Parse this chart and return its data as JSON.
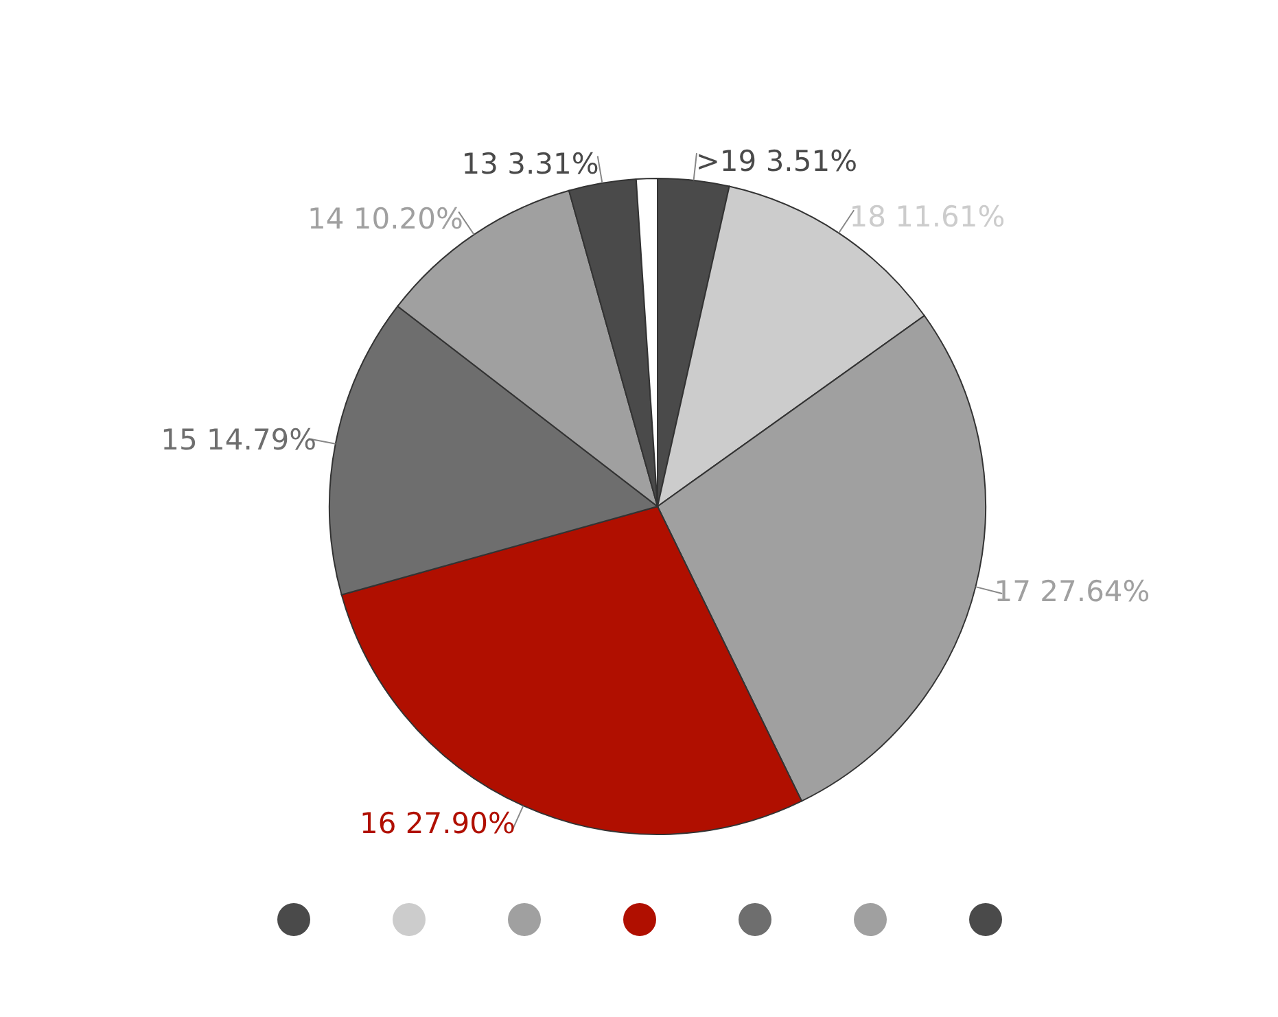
{
  "chart_data": {
    "type": "pie",
    "categories": [
      ">19",
      "18",
      "17",
      "16",
      "15",
      "14",
      "13",
      null
    ],
    "values": [
      3.51,
      11.61,
      27.64,
      27.9,
      14.79,
      10.2,
      3.31,
      1.04
    ],
    "value_labels": [
      "3.51%",
      "11.61%",
      "27.64%",
      "27.90%",
      "14.79%",
      "10.20%",
      "3.31%",
      null
    ],
    "colors": [
      "#4a4a4a",
      "#cccccc",
      "#a0a0a0",
      "#b00f00",
      "#6e6e6e",
      "#a0a0a0",
      "#4a4a4a",
      "#ffffff"
    ]
  }
}
